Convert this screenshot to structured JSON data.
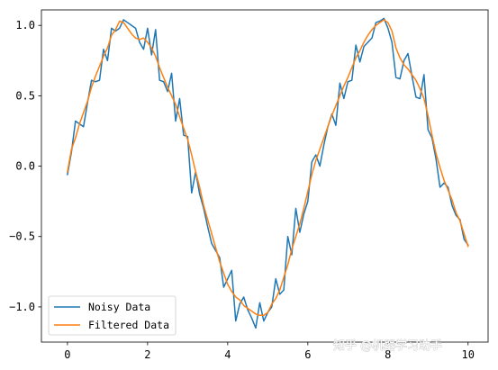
{
  "chart_data": {
    "type": "line",
    "title": "",
    "xlabel": "",
    "ylabel": "",
    "xlim": [
      -0.65,
      10.5
    ],
    "ylim": [
      -1.25,
      1.11
    ],
    "xticks": [
      0,
      2,
      4,
      6,
      8,
      10
    ],
    "yticks": [
      -1.0,
      -0.5,
      0.0,
      0.5,
      1.0
    ],
    "xtick_labels": [
      "0",
      "2",
      "4",
      "6",
      "8",
      "10"
    ],
    "ytick_labels": [
      "−1.0",
      "−0.5",
      "0.0",
      "0.5",
      "1.0"
    ],
    "grid": false,
    "legend_position": "lower-left",
    "series": [
      {
        "name": "Noisy Data",
        "color": "#1f77b4",
        "x": [
          0.0,
          0.1,
          0.2,
          0.3,
          0.4,
          0.5,
          0.6,
          0.7,
          0.8,
          0.9,
          1.0,
          1.1,
          1.2,
          1.3,
          1.4,
          1.5,
          1.6,
          1.7,
          1.8,
          1.9,
          2.0,
          2.1,
          2.2,
          2.3,
          2.4,
          2.5,
          2.6,
          2.7,
          2.8,
          2.9,
          3.0,
          3.1,
          3.2,
          3.3,
          3.4,
          3.5,
          3.6,
          3.7,
          3.8,
          3.9,
          4.0,
          4.1,
          4.2,
          4.3,
          4.4,
          4.5,
          4.6,
          4.7,
          4.8,
          4.9,
          5.0,
          5.1,
          5.2,
          5.3,
          5.4,
          5.5,
          5.6,
          5.7,
          5.8,
          5.9,
          6.0,
          6.1,
          6.2,
          6.3,
          6.4,
          6.5,
          6.6,
          6.7,
          6.8,
          6.9,
          7.0,
          7.1,
          7.2,
          7.3,
          7.4,
          7.5,
          7.6,
          7.7,
          7.8,
          7.9,
          8.0,
          8.1,
          8.2,
          8.3,
          8.4,
          8.5,
          8.6,
          8.7,
          8.8,
          8.9,
          9.0,
          9.1,
          9.2,
          9.3,
          9.4,
          9.5,
          9.6,
          9.7,
          9.8,
          9.9,
          10.0
        ],
        "y": [
          -0.06,
          0.1,
          0.32,
          0.3,
          0.28,
          0.45,
          0.61,
          0.6,
          0.61,
          0.83,
          0.75,
          0.98,
          0.96,
          0.98,
          1.04,
          1.02,
          1.0,
          0.98,
          0.88,
          0.83,
          0.98,
          0.79,
          0.97,
          0.61,
          0.6,
          0.53,
          0.66,
          0.32,
          0.48,
          0.22,
          0.21,
          -0.19,
          -0.04,
          -0.2,
          -0.3,
          -0.43,
          -0.55,
          -0.6,
          -0.65,
          -0.86,
          -0.8,
          -0.74,
          -1.1,
          -0.98,
          -0.93,
          -1.02,
          -1.08,
          -1.15,
          -0.97,
          -1.1,
          -1.04,
          -1.0,
          -0.8,
          -0.91,
          -0.88,
          -0.5,
          -0.63,
          -0.3,
          -0.47,
          -0.34,
          -0.25,
          0.03,
          0.08,
          0.0,
          0.15,
          0.28,
          0.37,
          0.29,
          0.59,
          0.48,
          0.6,
          0.61,
          0.86,
          0.74,
          0.85,
          0.88,
          0.91,
          1.02,
          1.03,
          1.05,
          0.98,
          0.88,
          0.63,
          0.62,
          0.75,
          0.8,
          0.64,
          0.49,
          0.48,
          0.65,
          0.26,
          0.2,
          0.05,
          -0.15,
          -0.12,
          -0.15,
          -0.28,
          -0.35,
          -0.38,
          -0.52,
          -0.56
        ]
      },
      {
        "name": "Filtered Data",
        "color": "#ff7f0e",
        "x": [
          0.0,
          0.1,
          0.2,
          0.3,
          0.4,
          0.5,
          0.6,
          0.7,
          0.8,
          0.9,
          1.0,
          1.1,
          1.2,
          1.3,
          1.4,
          1.5,
          1.6,
          1.7,
          1.8,
          1.9,
          2.0,
          2.1,
          2.2,
          2.3,
          2.4,
          2.5,
          2.6,
          2.7,
          2.8,
          2.9,
          3.0,
          3.1,
          3.2,
          3.3,
          3.4,
          3.5,
          3.6,
          3.7,
          3.8,
          3.9,
          4.0,
          4.1,
          4.2,
          4.3,
          4.4,
          4.5,
          4.6,
          4.7,
          4.8,
          4.9,
          5.0,
          5.1,
          5.2,
          5.3,
          5.4,
          5.5,
          5.6,
          5.7,
          5.8,
          5.9,
          6.0,
          6.1,
          6.2,
          6.3,
          6.4,
          6.5,
          6.6,
          6.7,
          6.8,
          6.9,
          7.0,
          7.1,
          7.2,
          7.3,
          7.4,
          7.5,
          7.6,
          7.7,
          7.8,
          7.9,
          8.0,
          8.1,
          8.2,
          8.3,
          8.4,
          8.5,
          8.6,
          8.7,
          8.8,
          8.9,
          9.0,
          9.1,
          9.2,
          9.3,
          9.4,
          9.5,
          9.6,
          9.7,
          9.8,
          9.9,
          10.0
        ],
        "y": [
          -0.04,
          0.12,
          0.2,
          0.3,
          0.38,
          0.46,
          0.56,
          0.64,
          0.71,
          0.78,
          0.84,
          0.93,
          0.97,
          1.03,
          1.02,
          0.98,
          0.94,
          0.91,
          0.9,
          0.91,
          0.88,
          0.84,
          0.78,
          0.7,
          0.63,
          0.56,
          0.5,
          0.44,
          0.35,
          0.27,
          0.19,
          0.08,
          -0.04,
          -0.15,
          -0.28,
          -0.38,
          -0.48,
          -0.58,
          -0.68,
          -0.76,
          -0.84,
          -0.89,
          -0.93,
          -0.95,
          -0.99,
          -1.01,
          -1.03,
          -1.05,
          -1.06,
          -1.06,
          -1.04,
          -0.98,
          -0.94,
          -0.88,
          -0.79,
          -0.7,
          -0.59,
          -0.5,
          -0.41,
          -0.3,
          -0.18,
          -0.06,
          0.04,
          0.12,
          0.2,
          0.28,
          0.36,
          0.43,
          0.5,
          0.57,
          0.63,
          0.7,
          0.77,
          0.82,
          0.88,
          0.93,
          0.97,
          1.0,
          1.02,
          1.04,
          1.02,
          0.96,
          0.84,
          0.77,
          0.72,
          0.69,
          0.65,
          0.61,
          0.55,
          0.48,
          0.36,
          0.22,
          0.09,
          -0.01,
          -0.1,
          -0.17,
          -0.24,
          -0.33,
          -0.39,
          -0.48,
          -0.57
        ]
      }
    ]
  },
  "watermark": {
    "text": "知乎 @机器学习助手"
  }
}
